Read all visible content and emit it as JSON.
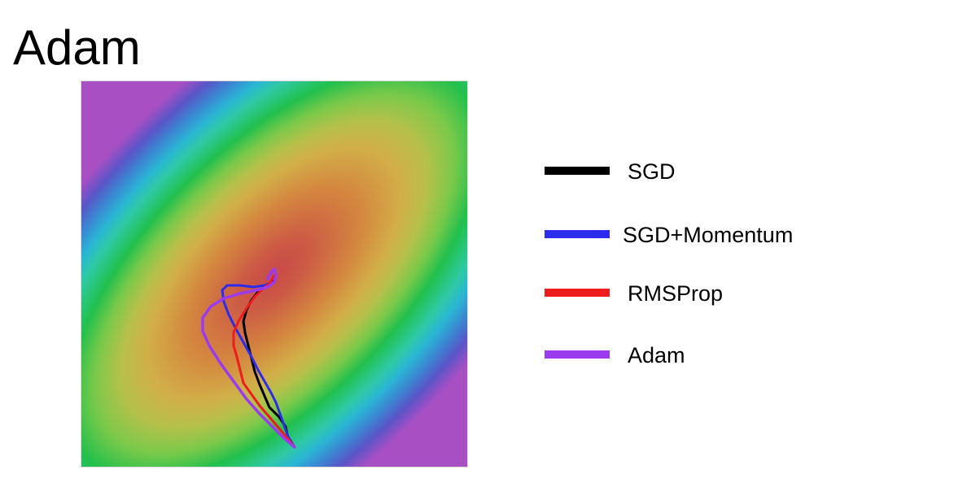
{
  "title": "Adam",
  "colors": {
    "background_stops": [
      "#c84a48",
      "#cc5a45",
      "#d4873f",
      "#d2ae48",
      "#b6c04a",
      "#7ac94a",
      "#22c04c",
      "#2ec9a6",
      "#29b6d4",
      "#3b86d2",
      "#5a55c8",
      "#a94fc4"
    ]
  },
  "legend": {
    "items": [
      {
        "label": "SGD",
        "color": "#000000"
      },
      {
        "label": "SGD+Momentum",
        "color": "#2c2cee"
      },
      {
        "label": "RMSProp",
        "color": "#ee1c1c"
      },
      {
        "label": "Adam",
        "color": "#9b3bee"
      }
    ]
  },
  "trajectories": [
    {
      "label": "SGD",
      "color": "#000000"
    },
    {
      "label": "SGD+Momentum",
      "color": "#2c2cee"
    },
    {
      "label": "RMSProp",
      "color": "#ee1c1c"
    },
    {
      "label": "Adam",
      "color": "#9b3bee"
    }
  ]
}
